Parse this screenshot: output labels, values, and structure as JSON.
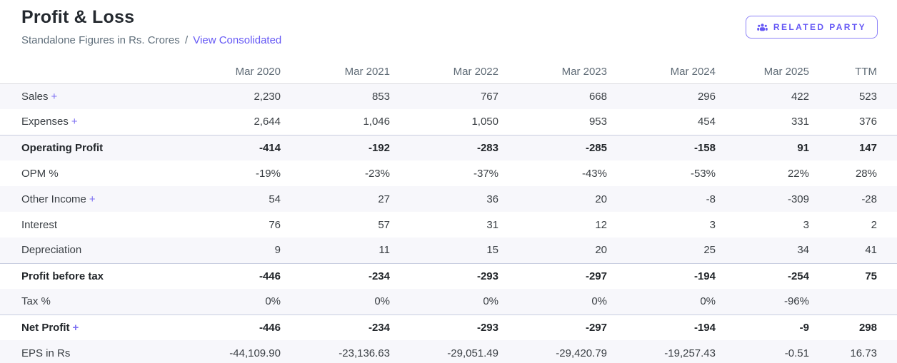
{
  "header": {
    "title": "Profit & Loss",
    "subtitle": "Standalone Figures in Rs. Crores",
    "separator": "/",
    "view_link_label": "View Consolidated",
    "related_party": {
      "label": "RELATED PARTY",
      "icon": "users-icon"
    }
  },
  "colors": {
    "accent_purple": "#6558f5",
    "plus_purple": "#7c6ff2",
    "stripe_row": "#f7f7fb",
    "strong_border": "#c9cee0",
    "header_border": "#d9dade",
    "title_text": "#24292f",
    "muted_text": "#5f6b76",
    "body_text": "#3b4045"
  },
  "table": {
    "columns": [
      "",
      "Mar 2020",
      "Mar 2021",
      "Mar 2022",
      "Mar 2023",
      "Mar 2024",
      "Mar 2025",
      "TTM"
    ],
    "expand_symbol": "+",
    "rows": [
      {
        "label": "Sales",
        "expandable": true,
        "bold": false,
        "values": [
          "2,230",
          "853",
          "767",
          "668",
          "296",
          "422",
          "523"
        ]
      },
      {
        "label": "Expenses",
        "expandable": true,
        "bold": false,
        "values": [
          "2,644",
          "1,046",
          "1,050",
          "953",
          "454",
          "331",
          "376"
        ]
      },
      {
        "label": "Operating Profit",
        "expandable": false,
        "bold": true,
        "values": [
          "-414",
          "-192",
          "-283",
          "-285",
          "-158",
          "91",
          "147"
        ]
      },
      {
        "label": "OPM %",
        "expandable": false,
        "bold": false,
        "values": [
          "-19%",
          "-23%",
          "-37%",
          "-43%",
          "-53%",
          "22%",
          "28%"
        ]
      },
      {
        "label": "Other Income",
        "expandable": true,
        "bold": false,
        "values": [
          "54",
          "27",
          "36",
          "20",
          "-8",
          "-309",
          "-28"
        ]
      },
      {
        "label": "Interest",
        "expandable": false,
        "bold": false,
        "values": [
          "76",
          "57",
          "31",
          "12",
          "3",
          "3",
          "2"
        ]
      },
      {
        "label": "Depreciation",
        "expandable": false,
        "bold": false,
        "values": [
          "9",
          "11",
          "15",
          "20",
          "25",
          "34",
          "41"
        ]
      },
      {
        "label": "Profit before tax",
        "expandable": false,
        "bold": true,
        "values": [
          "-446",
          "-234",
          "-293",
          "-297",
          "-194",
          "-254",
          "75"
        ]
      },
      {
        "label": "Tax %",
        "expandable": false,
        "bold": false,
        "values": [
          "0%",
          "0%",
          "0%",
          "0%",
          "0%",
          "-96%",
          ""
        ]
      },
      {
        "label": "Net Profit",
        "expandable": true,
        "bold": true,
        "values": [
          "-446",
          "-234",
          "-293",
          "-297",
          "-194",
          "-9",
          "298"
        ]
      },
      {
        "label": "EPS in Rs",
        "expandable": false,
        "bold": false,
        "values": [
          "-44,109.90",
          "-23,136.63",
          "-29,051.49",
          "-29,420.79",
          "-19,257.43",
          "-0.51",
          "16.73"
        ]
      }
    ]
  }
}
